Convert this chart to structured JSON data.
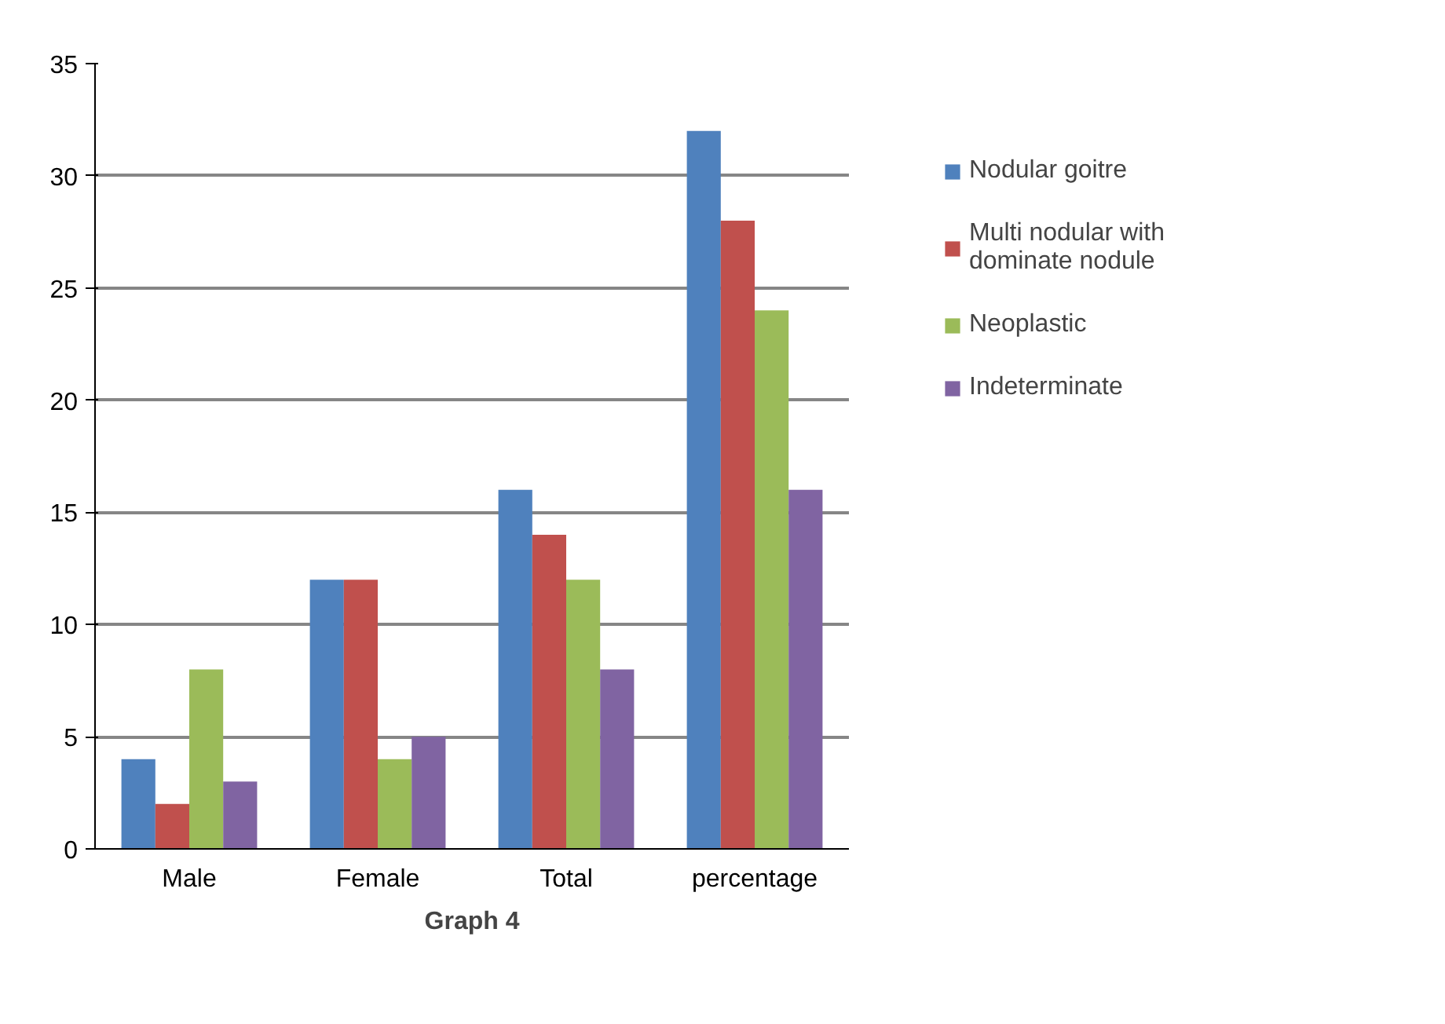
{
  "chart_data": {
    "type": "bar",
    "categories": [
      "Male",
      "Female",
      "Total",
      "percentage"
    ],
    "series": [
      {
        "name": "Nodular goitre",
        "color": "#4f81bd",
        "values": [
          4,
          12,
          16,
          32
        ]
      },
      {
        "name": "Multi nodular with dominate nodule",
        "color": "#c0504d",
        "values": [
          2,
          12,
          14,
          28
        ]
      },
      {
        "name": "Neoplastic",
        "color": "#9bbb59",
        "values": [
          8,
          4,
          12,
          24
        ]
      },
      {
        "name": "Indeterminate",
        "color": "#8064a2",
        "values": [
          3,
          5,
          8,
          16
        ]
      }
    ],
    "ylim": [
      0,
      35
    ],
    "yticks": [
      0,
      5,
      10,
      15,
      20,
      25,
      30,
      35
    ],
    "grid": "y",
    "legend": "right",
    "annotations": [
      "Graph 4"
    ]
  }
}
